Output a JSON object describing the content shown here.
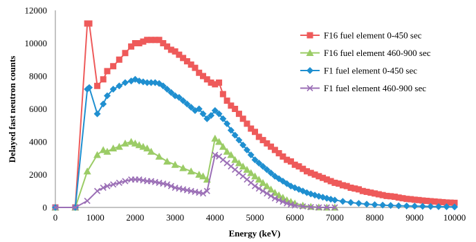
{
  "chart_data": {
    "type": "line",
    "xlabel": "Energy (keV)",
    "ylabel": "Delayed fast neutron counts",
    "xlim": [
      0,
      10000
    ],
    "ylim": [
      0,
      12000
    ],
    "xticks": [
      0,
      1000,
      2000,
      3000,
      4000,
      5000,
      6000,
      7000,
      8000,
      9000,
      10000
    ],
    "yticks": [
      0,
      2000,
      4000,
      6000,
      8000,
      10000,
      12000
    ],
    "grid": false,
    "legend_position": "top-right",
    "series": [
      {
        "name": "F16 fuel element 0-450 sec",
        "color": "#ee5a5a",
        "marker": "square",
        "x": [
          0,
          500,
          800,
          850,
          1050,
          1200,
          1300,
          1450,
          1600,
          1750,
          1900,
          2000,
          2100,
          2200,
          2300,
          2400,
          2500,
          2600,
          2700,
          2800,
          2900,
          3000,
          3100,
          3200,
          3300,
          3400,
          3500,
          3600,
          3700,
          3800,
          3900,
          4000,
          4100,
          4200,
          4300,
          4400,
          4500,
          4600,
          4700,
          4800,
          4900,
          5000,
          5100,
          5200,
          5300,
          5400,
          5500,
          5600,
          5700,
          5800,
          5900,
          6000,
          6100,
          6200,
          6300,
          6400,
          6500,
          6600,
          6700,
          6800,
          6900,
          7000,
          7100,
          7200,
          7300,
          7400,
          7500,
          7600,
          7700,
          7800,
          7900,
          8000,
          8100,
          8200,
          8300,
          8400,
          8500,
          8600,
          8700,
          8800,
          8900,
          9000,
          9100,
          9200,
          9300,
          9400,
          9500,
          9600,
          9700,
          9800,
          9900,
          10000
        ],
        "y": [
          0,
          0,
          11200,
          11200,
          7400,
          7800,
          8300,
          8600,
          9000,
          9400,
          9800,
          10000,
          10000,
          10100,
          10200,
          10200,
          10200,
          10200,
          10000,
          9800,
          9600,
          9500,
          9300,
          9100,
          8900,
          8700,
          8500,
          8200,
          8000,
          7800,
          7600,
          7500,
          7600,
          6900,
          6500,
          6200,
          6000,
          5700,
          5400,
          5100,
          4800,
          4600,
          4300,
          4100,
          3900,
          3700,
          3500,
          3300,
          3100,
          2900,
          2800,
          2600,
          2500,
          2350,
          2200,
          2100,
          2000,
          1900,
          1800,
          1700,
          1600,
          1500,
          1450,
          1350,
          1300,
          1200,
          1150,
          1100,
          1000,
          950,
          900,
          850,
          800,
          750,
          700,
          680,
          650,
          600,
          560,
          520,
          500,
          470,
          450,
          420,
          400,
          380,
          360,
          340,
          320,
          300,
          290,
          280
        ]
      },
      {
        "name": "F16 fuel element 460-900 sec",
        "color": "#9bcc66",
        "marker": "triangle",
        "x": [
          0,
          500,
          800,
          1050,
          1200,
          1300,
          1450,
          1600,
          1750,
          1900,
          2000,
          2100,
          2200,
          2300,
          2400,
          2600,
          2800,
          3000,
          3200,
          3400,
          3600,
          3700,
          3800,
          4000,
          4100,
          4200,
          4300,
          4400,
          4500,
          4600,
          4700,
          4800,
          4900,
          5000,
          5100,
          5200,
          5300,
          5400,
          5500,
          5600,
          5700,
          5800,
          5900,
          6000,
          6200,
          6400,
          6600,
          6800,
          7000
        ],
        "y": [
          0,
          0,
          2200,
          3200,
          3500,
          3400,
          3600,
          3700,
          3900,
          4000,
          3900,
          3800,
          3700,
          3600,
          3400,
          3100,
          2800,
          2600,
          2400,
          2200,
          2000,
          1900,
          1700,
          4200,
          4000,
          3700,
          3400,
          3200,
          2900,
          2700,
          2500,
          2300,
          2100,
          1900,
          1700,
          1500,
          1300,
          1100,
          900,
          750,
          600,
          450,
          350,
          250,
          120,
          50,
          10,
          0,
          0
        ]
      },
      {
        "name": "F1 fuel element 0-450 sec",
        "color": "#1f8fd0",
        "marker": "diamond",
        "x": [
          0,
          500,
          800,
          850,
          1050,
          1200,
          1300,
          1450,
          1600,
          1750,
          1900,
          2000,
          2100,
          2200,
          2300,
          2400,
          2500,
          2600,
          2700,
          2800,
          2900,
          3000,
          3100,
          3200,
          3300,
          3400,
          3500,
          3600,
          3700,
          3800,
          3900,
          4000,
          4100,
          4200,
          4300,
          4400,
          4500,
          4600,
          4700,
          4800,
          4900,
          5000,
          5100,
          5200,
          5300,
          5400,
          5500,
          5600,
          5700,
          5800,
          5900,
          6000,
          6100,
          6200,
          6300,
          6400,
          6500,
          6600,
          6700,
          6800,
          6900,
          7000,
          7200,
          7400,
          7600,
          7800,
          8000,
          8200,
          8400,
          8600,
          8800,
          9000,
          9200,
          9400,
          9600,
          9800,
          10000
        ],
        "y": [
          0,
          0,
          7200,
          7300,
          5700,
          6300,
          6800,
          7200,
          7400,
          7600,
          7700,
          7800,
          7700,
          7650,
          7600,
          7600,
          7600,
          7550,
          7400,
          7200,
          7000,
          6800,
          6700,
          6500,
          6300,
          6100,
          5900,
          6000,
          5700,
          5400,
          5600,
          5900,
          5700,
          5400,
          5100,
          4700,
          4400,
          4100,
          3800,
          3500,
          3200,
          2900,
          2700,
          2500,
          2300,
          2100,
          1900,
          1750,
          1600,
          1450,
          1300,
          1200,
          1100,
          1000,
          900,
          820,
          750,
          680,
          620,
          560,
          500,
          450,
          370,
          300,
          250,
          200,
          170,
          140,
          120,
          100,
          90,
          80,
          70,
          60,
          50,
          40,
          30
        ]
      },
      {
        "name": "F1 fuel element 460-900 sec",
        "color": "#9b6fb6",
        "marker": "x",
        "x": [
          0,
          500,
          800,
          1050,
          1200,
          1300,
          1450,
          1600,
          1750,
          1900,
          2000,
          2100,
          2200,
          2300,
          2400,
          2500,
          2600,
          2700,
          2800,
          2900,
          3000,
          3100,
          3200,
          3300,
          3400,
          3500,
          3600,
          3700,
          3800,
          4000,
          4100,
          4200,
          4300,
          4400,
          4500,
          4600,
          4700,
          4800,
          4900,
          5000,
          5100,
          5200,
          5300,
          5400,
          5500,
          5600,
          5700,
          5800,
          5900,
          6000,
          6200,
          6400,
          6600,
          6800,
          7000
        ],
        "y": [
          0,
          0,
          400,
          1000,
          1200,
          1300,
          1400,
          1500,
          1600,
          1700,
          1700,
          1700,
          1650,
          1600,
          1600,
          1550,
          1500,
          1450,
          1400,
          1300,
          1200,
          1150,
          1100,
          1050,
          1000,
          950,
          900,
          850,
          1000,
          3200,
          3100,
          2900,
          2700,
          2500,
          2300,
          2100,
          1900,
          1700,
          1500,
          1300,
          1150,
          1000,
          850,
          700,
          550,
          450,
          350,
          250,
          180,
          120,
          60,
          20,
          0,
          0,
          0
        ]
      }
    ]
  }
}
